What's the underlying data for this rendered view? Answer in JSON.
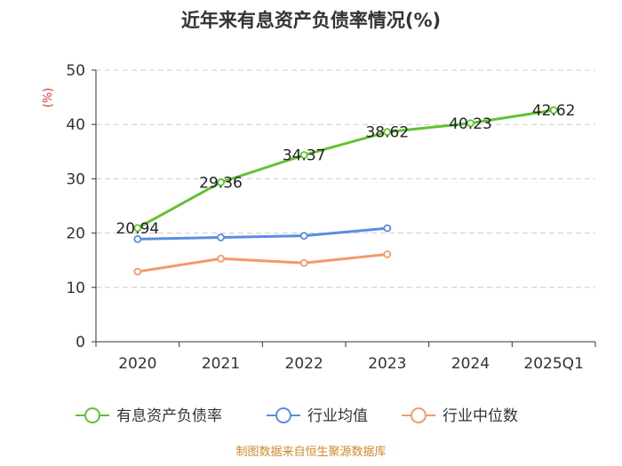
{
  "chart_data": {
    "type": "line",
    "title": "近年来有息资产负债率情况(%)",
    "ylabel": "(%)",
    "categories": [
      "2020",
      "2021",
      "2022",
      "2023",
      "2024",
      "2025Q1"
    ],
    "ylim": [
      0,
      50
    ],
    "yticks": [
      0,
      10,
      20,
      30,
      40,
      50
    ],
    "grid": true,
    "legend_position": "bottom",
    "series": [
      {
        "name": "有息资产负债率",
        "color": "#63c132",
        "values": [
          20.94,
          29.36,
          34.37,
          38.62,
          40.23,
          42.62
        ],
        "labels": [
          "20.94",
          "29.36",
          "34.37",
          "38.62",
          "40.23",
          "42.62"
        ]
      },
      {
        "name": "行业均值",
        "color": "#5b8de0",
        "values": [
          18.9,
          19.2,
          19.5,
          20.9,
          null,
          null
        ]
      },
      {
        "name": "行业中位数",
        "color": "#f4996a",
        "values": [
          12.9,
          15.3,
          14.5,
          16.1,
          null,
          null
        ]
      }
    ]
  },
  "footer": {
    "source": "制图数据来自恒生聚源数据库"
  }
}
